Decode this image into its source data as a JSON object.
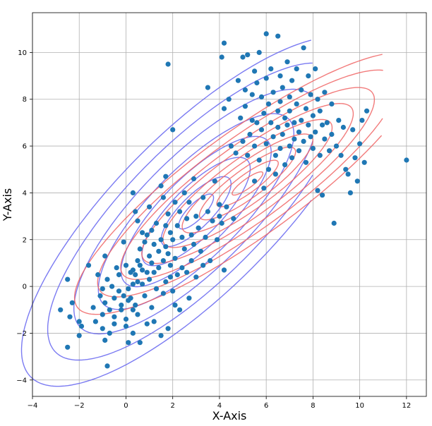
{
  "chart_data": {
    "type": "scatter",
    "title": "",
    "xlabel": "X-Axis",
    "ylabel": "Y-Axis",
    "xlim": [
      -4,
      12.85
    ],
    "ylim": [
      -4.7,
      11.7
    ],
    "xticks": [
      -4,
      -2,
      0,
      2,
      4,
      6,
      8,
      10,
      12
    ],
    "yticks": [
      -4,
      -2,
      0,
      2,
      4,
      6,
      8,
      10
    ],
    "grid": true,
    "colors": {
      "points": "#1f77b4",
      "contour_a": "#6464f0",
      "contour_b": "#f06464"
    },
    "contours": [
      {
        "name": "",
        "color": "#6464f0",
        "center": [
          3.0,
          3.2
        ],
        "angle_deg": 45,
        "semi_major": [
          1.0,
          2.0,
          3.1,
          4.3,
          5.6,
          7.0,
          8.5,
          10.0
        ],
        "axis_ratio": 0.34,
        "clip": {
          "xmax": 8.0,
          "ymax": 11.0
        }
      },
      {
        "name": "",
        "color": "#f06464",
        "center": [
          5.2,
          4.4
        ],
        "angle_deg": 36,
        "semi_major": [
          0.8,
          1.6,
          2.5,
          3.4,
          4.4,
          5.5,
          6.6,
          7.8,
          9.0
        ],
        "axis_ratio": 0.25,
        "clip": {
          "xmax": 11.0
        }
      }
    ],
    "series": [
      {
        "name": "",
        "points": [
          [
            -2.8,
            -1.0
          ],
          [
            -2.5,
            0.3
          ],
          [
            -2.5,
            -2.6
          ],
          [
            -2.4,
            -1.3
          ],
          [
            -2.3,
            -0.7
          ],
          [
            -2.0,
            -2.1
          ],
          [
            -2.0,
            -1.5
          ],
          [
            -1.9,
            -1.7
          ],
          [
            -1.6,
            0.9
          ],
          [
            -1.4,
            -0.9
          ],
          [
            -1.3,
            -1.5
          ],
          [
            -1.2,
            0.5
          ],
          [
            -1.1,
            -0.4
          ],
          [
            -1.0,
            -0.1
          ],
          [
            -1.0,
            -1.2
          ],
          [
            -1.0,
            -1.8
          ],
          [
            -0.9,
            1.3
          ],
          [
            -0.9,
            -0.7
          ],
          [
            -0.9,
            -2.3
          ],
          [
            -0.8,
            -3.4
          ],
          [
            -0.8,
            0.3
          ],
          [
            -0.7,
            -1.0
          ],
          [
            -0.7,
            -2.0
          ],
          [
            -0.6,
            0.0
          ],
          [
            -0.5,
            -0.5
          ],
          [
            -0.5,
            -1.3
          ],
          [
            -0.5,
            -1.6
          ],
          [
            -0.4,
            0.8
          ],
          [
            -0.3,
            0.5
          ],
          [
            -0.3,
            -0.2
          ],
          [
            -0.2,
            -0.8
          ],
          [
            -0.2,
            -1.0
          ],
          [
            -0.1,
            1.9
          ],
          [
            -0.1,
            -0.4
          ],
          [
            0.0,
            0.9
          ],
          [
            0.0,
            -1.4
          ],
          [
            0.0,
            -1.7
          ],
          [
            0.1,
            -0.1
          ],
          [
            0.1,
            -0.6
          ],
          [
            0.1,
            -2.4
          ],
          [
            0.2,
            0.6
          ],
          [
            0.2,
            -0.5
          ],
          [
            0.3,
            0.7
          ],
          [
            0.3,
            0.1
          ],
          [
            0.3,
            -1.0
          ],
          [
            0.3,
            -2.0
          ],
          [
            0.3,
            4.0
          ],
          [
            0.4,
            3.2
          ],
          [
            0.4,
            0.5
          ],
          [
            0.4,
            -0.8
          ],
          [
            0.5,
            2.8
          ],
          [
            0.5,
            1.1
          ],
          [
            0.5,
            0.2
          ],
          [
            0.5,
            -1.2
          ],
          [
            0.6,
            1.6
          ],
          [
            0.6,
            0.9
          ],
          [
            0.6,
            -2.4
          ],
          [
            0.7,
            2.3
          ],
          [
            0.7,
            0.7
          ],
          [
            0.7,
            0.1
          ],
          [
            0.8,
            1.9
          ],
          [
            0.8,
            -0.4
          ],
          [
            0.9,
            2.2
          ],
          [
            0.9,
            0.6
          ],
          [
            0.9,
            -1.6
          ],
          [
            1.0,
            3.4
          ],
          [
            1.0,
            1.3
          ],
          [
            1.0,
            0.3
          ],
          [
            1.1,
            2.4
          ],
          [
            1.1,
            1.0
          ],
          [
            1.1,
            -0.9
          ],
          [
            1.2,
            1.8
          ],
          [
            1.2,
            0.6
          ],
          [
            1.2,
            -1.5
          ],
          [
            1.3,
            2.7
          ],
          [
            1.3,
            -0.1
          ],
          [
            1.4,
            1.5
          ],
          [
            1.4,
            0.8
          ],
          [
            1.5,
            4.3
          ],
          [
            1.5,
            2.0
          ],
          [
            1.5,
            -2.1
          ],
          [
            1.6,
            3.8
          ],
          [
            1.6,
            1.1
          ],
          [
            1.6,
            -0.3
          ],
          [
            1.7,
            4.7
          ],
          [
            1.7,
            2.6
          ],
          [
            1.7,
            1.7
          ],
          [
            1.7,
            0.2
          ],
          [
            1.8,
            9.5
          ],
          [
            1.8,
            3.1
          ],
          [
            1.8,
            1.4
          ],
          [
            1.8,
            -1.8
          ],
          [
            1.9,
            2.3
          ],
          [
            1.9,
            0.9
          ],
          [
            1.9,
            0.4
          ],
          [
            2.0,
            6.7
          ],
          [
            2.0,
            2.0
          ],
          [
            2.0,
            -0.2
          ],
          [
            2.1,
            3.6
          ],
          [
            2.1,
            1.2
          ],
          [
            2.1,
            -0.8
          ],
          [
            2.2,
            2.6
          ],
          [
            2.2,
            0.5
          ],
          [
            2.3,
            3.2
          ],
          [
            2.3,
            -1.0
          ],
          [
            2.4,
            2.1
          ],
          [
            2.4,
            0.8
          ],
          [
            2.5,
            4.0
          ],
          [
            2.5,
            1.6
          ],
          [
            2.6,
            2.9
          ],
          [
            2.6,
            0.6
          ],
          [
            2.7,
            3.6
          ],
          [
            2.7,
            -0.5
          ],
          [
            2.8,
            2.2
          ],
          [
            2.8,
            1.1
          ],
          [
            2.9,
            4.6
          ],
          [
            2.9,
            1.8
          ],
          [
            3.0,
            3.0
          ],
          [
            3.0,
            0.4
          ],
          [
            3.1,
            2.5
          ],
          [
            3.2,
            1.5
          ],
          [
            3.3,
            3.8
          ],
          [
            3.3,
            0.9
          ],
          [
            3.4,
            2.1
          ],
          [
            3.5,
            8.5
          ],
          [
            3.5,
            3.2
          ],
          [
            3.6,
            1.1
          ],
          [
            3.7,
            2.8
          ],
          [
            3.8,
            4.5
          ],
          [
            3.9,
            2.0
          ],
          [
            4.0,
            3.5
          ],
          [
            4.0,
            3.0
          ],
          [
            4.1,
            9.8
          ],
          [
            4.1,
            2.7
          ],
          [
            4.2,
            10.4
          ],
          [
            4.2,
            7.6
          ],
          [
            4.2,
            0.7
          ],
          [
            4.3,
            3.4
          ],
          [
            4.4,
            8.0
          ],
          [
            4.5,
            6.0
          ],
          [
            4.6,
            2.9
          ],
          [
            4.7,
            5.7
          ],
          [
            4.8,
            8.8
          ],
          [
            4.9,
            7.2
          ],
          [
            5.0,
            9.8
          ],
          [
            5.0,
            6.2
          ],
          [
            5.1,
            8.4
          ],
          [
            5.1,
            7.7
          ],
          [
            5.2,
            9.9
          ],
          [
            5.2,
            5.6
          ],
          [
            5.3,
            6.5
          ],
          [
            5.4,
            8.2
          ],
          [
            5.4,
            7.1
          ],
          [
            5.5,
            9.2
          ],
          [
            5.5,
            6.0
          ],
          [
            5.5,
            4.5
          ],
          [
            5.6,
            8.7
          ],
          [
            5.6,
            7.0
          ],
          [
            5.7,
            10.0
          ],
          [
            5.7,
            5.4
          ],
          [
            5.8,
            8.1
          ],
          [
            5.8,
            6.7
          ],
          [
            5.9,
            7.4
          ],
          [
            5.9,
            4.2
          ],
          [
            6.0,
            10.8
          ],
          [
            6.0,
            8.9
          ],
          [
            6.0,
            6.1
          ],
          [
            6.1,
            7.8
          ],
          [
            6.1,
            5.0
          ],
          [
            6.2,
            9.3
          ],
          [
            6.2,
            7.0
          ],
          [
            6.3,
            8.3
          ],
          [
            6.3,
            6.4
          ],
          [
            6.4,
            5.6
          ],
          [
            6.4,
            4.8
          ],
          [
            6.5,
            10.7
          ],
          [
            6.5,
            7.5
          ],
          [
            6.5,
            6.8
          ],
          [
            6.6,
            9.0
          ],
          [
            6.6,
            7.9
          ],
          [
            6.6,
            5.9
          ],
          [
            6.7,
            8.5
          ],
          [
            6.7,
            6.5
          ],
          [
            6.8,
            7.2
          ],
          [
            6.8,
            5.2
          ],
          [
            6.9,
            9.6
          ],
          [
            6.9,
            6.9
          ],
          [
            7.0,
            8.1
          ],
          [
            7.0,
            7.5
          ],
          [
            7.0,
            6.0
          ],
          [
            7.1,
            8.8
          ],
          [
            7.1,
            5.5
          ],
          [
            7.2,
            7.0
          ],
          [
            7.2,
            6.3
          ],
          [
            7.3,
            9.3
          ],
          [
            7.3,
            7.8
          ],
          [
            7.4,
            6.6
          ],
          [
            7.4,
            5.8
          ],
          [
            7.5,
            8.4
          ],
          [
            7.5,
            7.1
          ],
          [
            7.6,
            10.2
          ],
          [
            7.6,
            6.2
          ],
          [
            7.7,
            7.6
          ],
          [
            7.7,
            5.3
          ],
          [
            7.8,
            9.0
          ],
          [
            7.8,
            6.9
          ],
          [
            7.9,
            8.2
          ],
          [
            7.9,
            6.4
          ],
          [
            8.0,
            7.3
          ],
          [
            8.0,
            5.9
          ],
          [
            8.1,
            9.3
          ],
          [
            8.1,
            6.6
          ],
          [
            8.2,
            8.0
          ],
          [
            8.2,
            4.1
          ],
          [
            8.3,
            7.5
          ],
          [
            8.3,
            5.6
          ],
          [
            8.4,
            6.9
          ],
          [
            8.4,
            3.9
          ],
          [
            8.5,
            8.3
          ],
          [
            8.5,
            6.3
          ],
          [
            8.6,
            7.0
          ],
          [
            8.7,
            5.8
          ],
          [
            8.8,
            6.5
          ],
          [
            8.8,
            7.8
          ],
          [
            8.9,
            2.7
          ],
          [
            9.0,
            6.0
          ],
          [
            9.1,
            7.1
          ],
          [
            9.2,
            5.6
          ],
          [
            9.3,
            6.8
          ],
          [
            9.4,
            5.0
          ],
          [
            9.5,
            4.8
          ],
          [
            9.6,
            4.0
          ],
          [
            9.7,
            6.7
          ],
          [
            9.8,
            5.5
          ],
          [
            9.9,
            4.5
          ],
          [
            10.0,
            6.1
          ],
          [
            10.1,
            7.1
          ],
          [
            10.2,
            5.3
          ],
          [
            10.3,
            7.5
          ],
          [
            12.0,
            5.4
          ]
        ]
      }
    ]
  }
}
